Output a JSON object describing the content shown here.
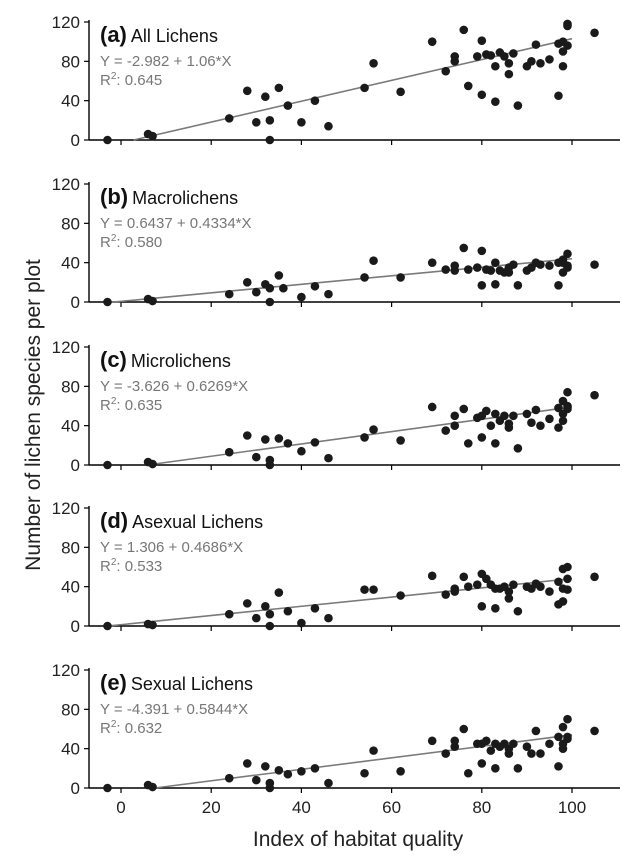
{
  "figure": {
    "ylabel": "Number of lichen species per plot",
    "xlabel": "Index of habitat quality",
    "x_ticks": [
      "0",
      "20",
      "40",
      "60",
      "80",
      "100"
    ],
    "y_ticks": [
      "0",
      "40",
      "80",
      "120"
    ]
  },
  "colors": {
    "points": "#1a1a1a",
    "regression_line": "#7a7a7a",
    "equation_text": "#777777",
    "axes": "#000000"
  },
  "chart_data": [
    {
      "type": "scatter",
      "letter": "(a)",
      "name": "All Lichens",
      "equation": "Y = -2.982 + 1.06*X",
      "r2_label": "R",
      "r2_value": ": 0.645",
      "intercept": -2.982,
      "slope": 1.06,
      "line_x": [
        2.8,
        100
      ],
      "xlim": [
        -10,
        110
      ],
      "ylim": [
        0,
        120
      ],
      "points": [
        [
          -3,
          0
        ],
        [
          6,
          6
        ],
        [
          7,
          4
        ],
        [
          24,
          22
        ],
        [
          28,
          50
        ],
        [
          30,
          18
        ],
        [
          32,
          44
        ],
        [
          33,
          20
        ],
        [
          33,
          0
        ],
        [
          35,
          53
        ],
        [
          37,
          35
        ],
        [
          40,
          18
        ],
        [
          43,
          40
        ],
        [
          46,
          14
        ],
        [
          54,
          53
        ],
        [
          56,
          78
        ],
        [
          62,
          49
        ],
        [
          69,
          100
        ],
        [
          72,
          70
        ],
        [
          74,
          85
        ],
        [
          74,
          80
        ],
        [
          76,
          112
        ],
        [
          77,
          55
        ],
        [
          79,
          85
        ],
        [
          80,
          46
        ],
        [
          80,
          101
        ],
        [
          81,
          87
        ],
        [
          82,
          86
        ],
        [
          83,
          75
        ],
        [
          83,
          39
        ],
        [
          84,
          89
        ],
        [
          85,
          85
        ],
        [
          86,
          67
        ],
        [
          86,
          78
        ],
        [
          87,
          88
        ],
        [
          88,
          35
        ],
        [
          90,
          75
        ],
        [
          91,
          80
        ],
        [
          92,
          97
        ],
        [
          93,
          78
        ],
        [
          95,
          82
        ],
        [
          97,
          45
        ],
        [
          97,
          98
        ],
        [
          98,
          90
        ],
        [
          98,
          75
        ],
        [
          98,
          100
        ],
        [
          99,
          116
        ],
        [
          99,
          118
        ],
        [
          99,
          96
        ],
        [
          105,
          109
        ]
      ]
    },
    {
      "type": "scatter",
      "letter": "(b)",
      "name": "Macrolichens",
      "equation": "Y = 0.6437 + 0.4334*X",
      "r2_label": "R",
      "r2_value": ": 0.580",
      "intercept": 0.6437,
      "slope": 0.4334,
      "line_x": [
        -3,
        100
      ],
      "xlim": [
        -10,
        110
      ],
      "ylim": [
        0,
        120
      ],
      "points": [
        [
          -3,
          0
        ],
        [
          6,
          3
        ],
        [
          7,
          1
        ],
        [
          24,
          8
        ],
        [
          28,
          20
        ],
        [
          30,
          10
        ],
        [
          32,
          18
        ],
        [
          33,
          14
        ],
        [
          33,
          0
        ],
        [
          35,
          27
        ],
        [
          36,
          14
        ],
        [
          40,
          5
        ],
        [
          43,
          16
        ],
        [
          46,
          8
        ],
        [
          54,
          25
        ],
        [
          56,
          42
        ],
        [
          62,
          25
        ],
        [
          69,
          40
        ],
        [
          72,
          33
        ],
        [
          74,
          37
        ],
        [
          74,
          32
        ],
        [
          76,
          55
        ],
        [
          77,
          33
        ],
        [
          79,
          35
        ],
        [
          80,
          17
        ],
        [
          80,
          52
        ],
        [
          81,
          33
        ],
        [
          82,
          32
        ],
        [
          83,
          40
        ],
        [
          83,
          18
        ],
        [
          84,
          32
        ],
        [
          85,
          30
        ],
        [
          86,
          30
        ],
        [
          86,
          35
        ],
        [
          87,
          38
        ],
        [
          88,
          17
        ],
        [
          90,
          32
        ],
        [
          91,
          35
        ],
        [
          92,
          40
        ],
        [
          93,
          38
        ],
        [
          95,
          37
        ],
        [
          97,
          17
        ],
        [
          97,
          40
        ],
        [
          98,
          40
        ],
        [
          98,
          30
        ],
        [
          98,
          43
        ],
        [
          99,
          49
        ],
        [
          99,
          35
        ],
        [
          99,
          37
        ],
        [
          105,
          38
        ]
      ]
    },
    {
      "type": "scatter",
      "letter": "(c)",
      "name": "Microlichens",
      "equation": "Y = -3.626 + 0.6269*X",
      "r2_label": "R",
      "r2_value": ": 0.635",
      "intercept": -3.626,
      "slope": 0.6269,
      "line_x": [
        6,
        100
      ],
      "xlim": [
        -10,
        110
      ],
      "ylim": [
        0,
        120
      ],
      "points": [
        [
          -3,
          0
        ],
        [
          6,
          3
        ],
        [
          7,
          1
        ],
        [
          24,
          13
        ],
        [
          28,
          30
        ],
        [
          30,
          8
        ],
        [
          32,
          26
        ],
        [
          33,
          5
        ],
        [
          33,
          0
        ],
        [
          35,
          27
        ],
        [
          37,
          22
        ],
        [
          40,
          14
        ],
        [
          43,
          23
        ],
        [
          46,
          7
        ],
        [
          54,
          28
        ],
        [
          56,
          36
        ],
        [
          62,
          25
        ],
        [
          69,
          59
        ],
        [
          72,
          35
        ],
        [
          74,
          50
        ],
        [
          74,
          40
        ],
        [
          76,
          57
        ],
        [
          77,
          22
        ],
        [
          79,
          48
        ],
        [
          80,
          28
        ],
        [
          80,
          50
        ],
        [
          81,
          55
        ],
        [
          82,
          40
        ],
        [
          83,
          52
        ],
        [
          83,
          22
        ],
        [
          84,
          45
        ],
        [
          85,
          50
        ],
        [
          86,
          38
        ],
        [
          86,
          42
        ],
        [
          87,
          50
        ],
        [
          88,
          17
        ],
        [
          90,
          52
        ],
        [
          91,
          43
        ],
        [
          92,
          56
        ],
        [
          93,
          40
        ],
        [
          95,
          47
        ],
        [
          97,
          38
        ],
        [
          97,
          58
        ],
        [
          98,
          52
        ],
        [
          98,
          45
        ],
        [
          98,
          65
        ],
        [
          99,
          74
        ],
        [
          99,
          60
        ],
        [
          99,
          57
        ],
        [
          105,
          71
        ]
      ]
    },
    {
      "type": "scatter",
      "letter": "(d)",
      "name": "Asexual Lichens",
      "equation": "Y = 1.306 + 0.4686*X",
      "r2_label": "R",
      "r2_value": ": 0.533",
      "intercept": 1.306,
      "slope": 0.4686,
      "line_x": [
        -3,
        100
      ],
      "xlim": [
        -10,
        110
      ],
      "ylim": [
        0,
        120
      ],
      "points": [
        [
          -3,
          0
        ],
        [
          6,
          2
        ],
        [
          7,
          1
        ],
        [
          24,
          12
        ],
        [
          28,
          23
        ],
        [
          30,
          8
        ],
        [
          32,
          20
        ],
        [
          33,
          12
        ],
        [
          33,
          0
        ],
        [
          35,
          34
        ],
        [
          37,
          15
        ],
        [
          40,
          3
        ],
        [
          43,
          18
        ],
        [
          46,
          8
        ],
        [
          54,
          37
        ],
        [
          56,
          37
        ],
        [
          62,
          31
        ],
        [
          69,
          51
        ],
        [
          72,
          32
        ],
        [
          74,
          38
        ],
        [
          74,
          35
        ],
        [
          76,
          50
        ],
        [
          77,
          40
        ],
        [
          79,
          42
        ],
        [
          80,
          20
        ],
        [
          80,
          53
        ],
        [
          81,
          48
        ],
        [
          82,
          42
        ],
        [
          83,
          38
        ],
        [
          83,
          18
        ],
        [
          84,
          38
        ],
        [
          85,
          40
        ],
        [
          86,
          28
        ],
        [
          86,
          35
        ],
        [
          87,
          42
        ],
        [
          88,
          15
        ],
        [
          90,
          40
        ],
        [
          91,
          38
        ],
        [
          92,
          43
        ],
        [
          93,
          40
        ],
        [
          95,
          35
        ],
        [
          97,
          22
        ],
        [
          97,
          45
        ],
        [
          98,
          38
        ],
        [
          98,
          25
        ],
        [
          98,
          58
        ],
        [
          99,
          60
        ],
        [
          99,
          48
        ],
        [
          99,
          37
        ],
        [
          105,
          50
        ]
      ]
    },
    {
      "type": "scatter",
      "letter": "(e)",
      "name": "Sexual Lichens",
      "equation": "Y = -4.391 + 0.5844*X",
      "r2_label": "R",
      "r2_value": ": 0.632",
      "intercept": -4.391,
      "slope": 0.5844,
      "line_x": [
        7.5,
        100
      ],
      "xlim": [
        -10,
        110
      ],
      "ylim": [
        0,
        120
      ],
      "points": [
        [
          -3,
          0
        ],
        [
          6,
          3
        ],
        [
          7,
          1
        ],
        [
          24,
          10
        ],
        [
          28,
          25
        ],
        [
          30,
          8
        ],
        [
          32,
          22
        ],
        [
          33,
          5
        ],
        [
          33,
          0
        ],
        [
          35,
          18
        ],
        [
          37,
          14
        ],
        [
          40,
          17
        ],
        [
          43,
          20
        ],
        [
          46,
          5
        ],
        [
          54,
          15
        ],
        [
          56,
          38
        ],
        [
          62,
          17
        ],
        [
          69,
          48
        ],
        [
          72,
          35
        ],
        [
          74,
          48
        ],
        [
          74,
          42
        ],
        [
          76,
          60
        ],
        [
          77,
          15
        ],
        [
          79,
          45
        ],
        [
          80,
          25
        ],
        [
          80,
          45
        ],
        [
          81,
          48
        ],
        [
          82,
          38
        ],
        [
          83,
          45
        ],
        [
          83,
          20
        ],
        [
          84,
          42
        ],
        [
          85,
          45
        ],
        [
          86,
          35
        ],
        [
          86,
          40
        ],
        [
          87,
          45
        ],
        [
          88,
          20
        ],
        [
          90,
          42
        ],
        [
          91,
          35
        ],
        [
          92,
          58
        ],
        [
          93,
          35
        ],
        [
          95,
          45
        ],
        [
          97,
          22
        ],
        [
          97,
          52
        ],
        [
          98,
          45
        ],
        [
          98,
          40
        ],
        [
          98,
          62
        ],
        [
          99,
          70
        ],
        [
          99,
          50
        ],
        [
          99,
          52
        ],
        [
          105,
          58
        ]
      ]
    }
  ]
}
